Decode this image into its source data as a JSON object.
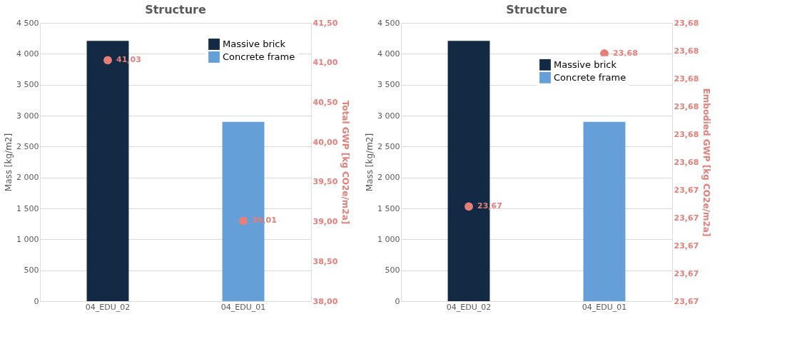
{
  "chart_data": [
    {
      "type": "bar",
      "title": "Structure",
      "categories": [
        "04_EDU_02",
        "04_EDU_01"
      ],
      "ylabel": "Mass [kg/m2]",
      "y2label": "Total GWP [kg CO2e/m2a]",
      "ylim": [
        0,
        4500
      ],
      "yticks": [
        0,
        500,
        {
          "value": 1000,
          "label": "1 000"
        },
        {
          "value": 1500,
          "label": "1 500"
        },
        {
          "value": 2000,
          "label": "2 000"
        },
        {
          "value": 2500,
          "label": "2 500"
        },
        {
          "value": 3000,
          "label": "3 000"
        },
        {
          "value": 3500,
          "label": "3 500"
        },
        {
          "value": 4000,
          "label": "4 000"
        },
        {
          "value": 4500,
          "label": "4 500"
        }
      ],
      "y2lim": [
        38.0,
        41.5
      ],
      "y2ticks": [
        {
          "value": 38.0,
          "label": "38,00"
        },
        {
          "value": 38.5,
          "label": "38,50"
        },
        {
          "value": 39.0,
          "label": "39,00"
        },
        {
          "value": 39.5,
          "label": "39,50"
        },
        {
          "value": 40.0,
          "label": "40,00"
        },
        {
          "value": 40.5,
          "label": "40,50"
        },
        {
          "value": 41.0,
          "label": "41,00"
        },
        {
          "value": 41.5,
          "label": "41,50"
        }
      ],
      "grid": "y",
      "legend": "top right",
      "series": [
        {
          "name": "Massive brick",
          "color": "#132a45",
          "values": [
            4210,
            null
          ]
        },
        {
          "name": "Concrete frame",
          "color": "#659fd8",
          "values": [
            null,
            2900
          ]
        },
        {
          "type": "scatter",
          "axis": "y2",
          "marker": "circle",
          "color": "#e77f78",
          "values": [
            41.03,
            39.01
          ],
          "value_labels": [
            "41,03",
            "39,01"
          ]
        }
      ]
    },
    {
      "type": "bar",
      "title": "Structure",
      "categories": [
        "04_EDU_02",
        "04_EDU_01"
      ],
      "ylabel": "Mass [kg/m2]",
      "y2label": "Embodied GWP [kg CO2e/m2a]",
      "ylim": [
        0,
        4500
      ],
      "yticks": [
        0,
        500,
        {
          "value": 1000,
          "label": "1 000"
        },
        {
          "value": 1500,
          "label": "1 500"
        },
        {
          "value": 2000,
          "label": "2 000"
        },
        {
          "value": 2500,
          "label": "2 500"
        },
        {
          "value": 3000,
          "label": "3 000"
        },
        {
          "value": 3500,
          "label": "3 500"
        },
        {
          "value": 4000,
          "label": "4 000"
        },
        {
          "value": 4500,
          "label": "4 500"
        }
      ],
      "y2lim": [
        23.67,
        23.68
      ],
      "y2ticks": [
        {
          "value": 23.67,
          "label": "23,67"
        },
        {
          "value": 23.671,
          "label": "23,67"
        },
        {
          "value": 23.672,
          "label": "23,67"
        },
        {
          "value": 23.673,
          "label": "23,67"
        },
        {
          "value": 23.674,
          "label": "23,67"
        },
        {
          "value": 23.675,
          "label": "23,68"
        },
        {
          "value": 23.676,
          "label": "23,68"
        },
        {
          "value": 23.677,
          "label": "23,68"
        },
        {
          "value": 23.678,
          "label": "23,68"
        },
        {
          "value": 23.679,
          "label": "23,68"
        },
        {
          "value": 23.68,
          "label": "23,68"
        }
      ],
      "grid": "y",
      "legend": "top",
      "series": [
        {
          "name": "Massive brick",
          "color": "#132a45",
          "values": [
            4210,
            null
          ]
        },
        {
          "name": "Concrete frame",
          "color": "#659fd8",
          "values": [
            null,
            2900
          ]
        },
        {
          "type": "scatter",
          "axis": "y2",
          "marker": "circle",
          "color": "#e77f78",
          "values": [
            23.6734,
            23.6789
          ],
          "value_labels": [
            "23,67",
            "23,68"
          ]
        }
      ]
    }
  ]
}
